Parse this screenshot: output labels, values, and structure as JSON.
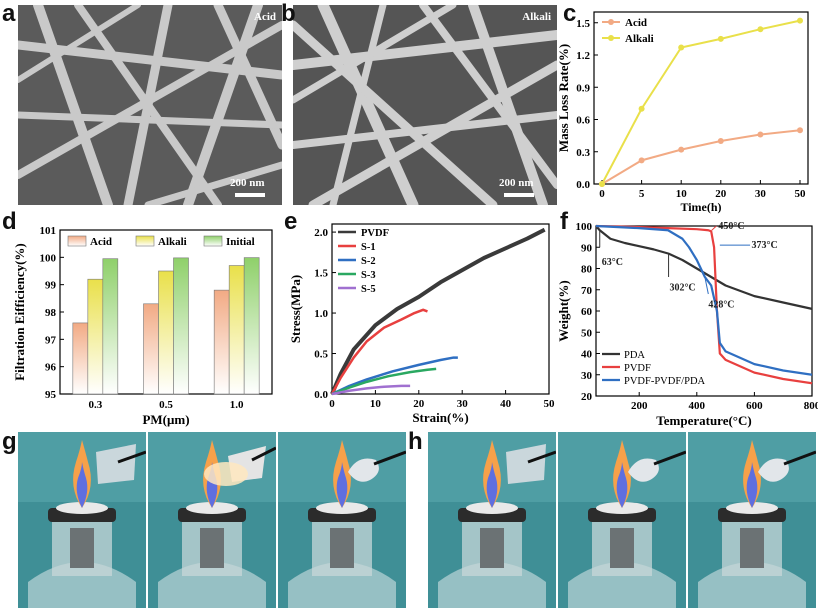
{
  "panel_labels": {
    "a": "a",
    "b": "b",
    "c": "c",
    "d": "d",
    "e": "e",
    "f": "f",
    "g": "g",
    "h": "h"
  },
  "sem_a": {
    "tag": "Acid",
    "scale": "200 nm"
  },
  "sem_b": {
    "tag": "Alkali",
    "scale": "200 nm"
  },
  "colors": {
    "acid": "#f2aa84",
    "alkali": "#e9e04a",
    "initial": "#8fd06a",
    "pvdf_e": "#3a3a3a",
    "s1": "#e8403f",
    "s2": "#2f6fc2",
    "s3": "#2aa861",
    "s5": "#a070d0",
    "pda": "#333333",
    "pvdf_f": "#e8403f",
    "blend": "#2f6fc2"
  },
  "chart_data": [
    {
      "id": "c",
      "type": "line",
      "xlabel": "Time(h)",
      "ylabel": "Mass Loss Rate(%)",
      "x_ticks": [
        "0",
        "5",
        "10",
        "20",
        "30",
        "50"
      ],
      "y_ticks": [
        "0.0",
        "0.3",
        "0.6",
        "0.9",
        "1.2",
        "1.5"
      ],
      "ylim": [
        0,
        1.6
      ],
      "series": [
        {
          "name": "Acid",
          "values": [
            0,
            0.22,
            0.32,
            0.4,
            0.46,
            0.5
          ]
        },
        {
          "name": "Alkali",
          "values": [
            0,
            0.7,
            1.27,
            1.35,
            1.44,
            1.52
          ]
        }
      ],
      "legend": "top-left"
    },
    {
      "id": "d",
      "type": "bar",
      "xlabel": "PM(μm)",
      "ylabel": "Filtration Eifficiency(%)",
      "categories": [
        "0.3",
        "0.5",
        "1.0"
      ],
      "y_ticks": [
        "95",
        "96",
        "97",
        "98",
        "99",
        "100",
        "101"
      ],
      "ylim": [
        95,
        101
      ],
      "series": [
        {
          "name": "Acid",
          "values": [
            97.6,
            98.3,
            98.8
          ]
        },
        {
          "name": "Alkali",
          "values": [
            99.2,
            99.5,
            99.7
          ]
        },
        {
          "name": "Initial",
          "values": [
            99.95,
            99.98,
            99.99
          ]
        }
      ],
      "legend": "top"
    },
    {
      "id": "e",
      "type": "line",
      "xlabel": "Strain(%)",
      "ylabel": "Stress(MPa)",
      "x_ticks": [
        "0",
        "10",
        "20",
        "30",
        "40",
        "50"
      ],
      "y_ticks": [
        "0.0",
        "0.5",
        "1.0",
        "1.5",
        "2.0"
      ],
      "xlim": [
        0,
        50
      ],
      "ylim": [
        0,
        2.1
      ],
      "series": [
        {
          "name": "PVDF",
          "points": [
            [
              0,
              0
            ],
            [
              2,
              0.25
            ],
            [
              5,
              0.55
            ],
            [
              10,
              0.85
            ],
            [
              15,
              1.05
            ],
            [
              20,
              1.2
            ],
            [
              25,
              1.38
            ],
            [
              30,
              1.53
            ],
            [
              35,
              1.68
            ],
            [
              40,
              1.8
            ],
            [
              45,
              1.92
            ],
            [
              49,
              2.03
            ]
          ]
        },
        {
          "name": "S-1",
          "points": [
            [
              0,
              0
            ],
            [
              2,
              0.2
            ],
            [
              5,
              0.45
            ],
            [
              8,
              0.65
            ],
            [
              12,
              0.82
            ],
            [
              16,
              0.92
            ],
            [
              19,
              1.0
            ],
            [
              21,
              1.04
            ],
            [
              22,
              1.02
            ]
          ]
        },
        {
          "name": "S-2",
          "points": [
            [
              0,
              0
            ],
            [
              4,
              0.1
            ],
            [
              8,
              0.18
            ],
            [
              14,
              0.28
            ],
            [
              20,
              0.36
            ],
            [
              25,
              0.42
            ],
            [
              28,
              0.45
            ],
            [
              29,
              0.45
            ]
          ]
        },
        {
          "name": "S-3",
          "points": [
            [
              0,
              0
            ],
            [
              4,
              0.08
            ],
            [
              8,
              0.15
            ],
            [
              13,
              0.22
            ],
            [
              18,
              0.27
            ],
            [
              22,
              0.3
            ],
            [
              24,
              0.31
            ]
          ]
        },
        {
          "name": "S-5",
          "points": [
            [
              0,
              0
            ],
            [
              4,
              0.04
            ],
            [
              8,
              0.07
            ],
            [
              12,
              0.09
            ],
            [
              16,
              0.1
            ],
            [
              18,
              0.1
            ]
          ]
        }
      ],
      "legend": "top-left"
    },
    {
      "id": "f",
      "type": "line",
      "xlabel": "Temperature(°C)",
      "ylabel": "Weight(%)",
      "x_ticks": [
        "200",
        "400",
        "600",
        "800"
      ],
      "y_ticks": [
        "20",
        "30",
        "40",
        "50",
        "60",
        "70",
        "80",
        "90",
        "100"
      ],
      "xlim": [
        50,
        800
      ],
      "ylim": [
        20,
        100
      ],
      "series": [
        {
          "name": "PDA",
          "points": [
            [
              50,
              100
            ],
            [
              63,
              98
            ],
            [
              100,
              94
            ],
            [
              150,
              92
            ],
            [
              200,
              90.5
            ],
            [
              250,
              89
            ],
            [
              302,
              87
            ],
            [
              350,
              84
            ],
            [
              400,
              80
            ],
            [
              450,
              76
            ],
            [
              500,
              72
            ],
            [
              600,
              67
            ],
            [
              700,
              64
            ],
            [
              800,
              61
            ]
          ]
        },
        {
          "name": "PVDF",
          "points": [
            [
              50,
              100
            ],
            [
              200,
              99.5
            ],
            [
              300,
              99
            ],
            [
              400,
              98.5
            ],
            [
              440,
              98
            ],
            [
              450,
              97.5
            ],
            [
              460,
              90
            ],
            [
              470,
              60
            ],
            [
              480,
              40
            ],
            [
              500,
              37
            ],
            [
              600,
              31
            ],
            [
              700,
              28
            ],
            [
              800,
              26
            ]
          ]
        },
        {
          "name": "PVDF-PVDF/PDA",
          "points": [
            [
              50,
              100
            ],
            [
              200,
              99
            ],
            [
              300,
              98
            ],
            [
              350,
              94
            ],
            [
              373,
              90
            ],
            [
              400,
              84
            ],
            [
              428,
              76
            ],
            [
              450,
              72
            ],
            [
              470,
              60
            ],
            [
              480,
              45
            ],
            [
              500,
              41
            ],
            [
              600,
              35
            ],
            [
              700,
              32
            ],
            [
              800,
              30
            ]
          ]
        }
      ],
      "annotations": [
        "63°C",
        "302°C",
        "428°C",
        "450°C",
        "373°C"
      ],
      "legend": "bottom-left"
    }
  ]
}
